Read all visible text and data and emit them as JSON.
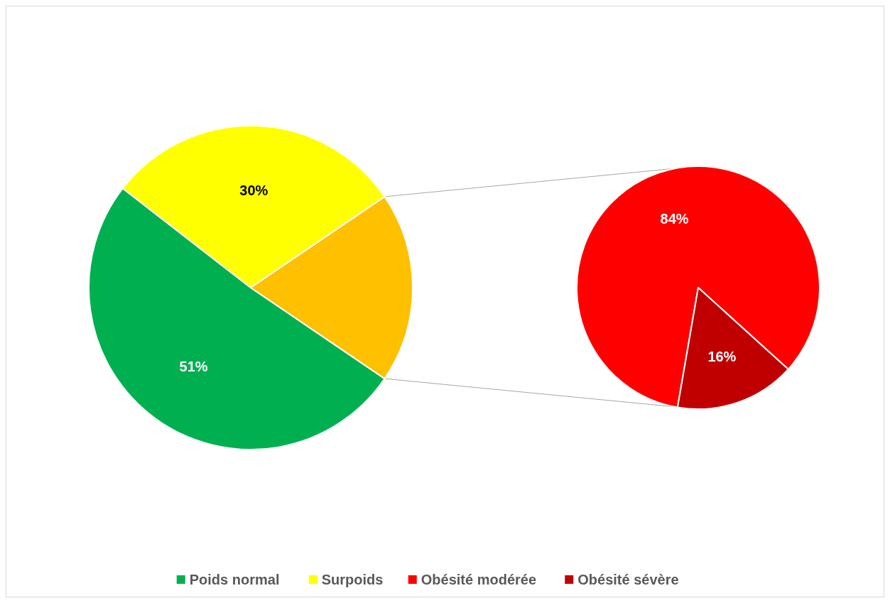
{
  "chart_data": [
    {
      "type": "pie",
      "categories": [
        "Poids normal",
        "Surpoids",
        null
      ],
      "values": [
        51,
        30,
        19
      ],
      "colors": [
        "#00b050",
        "#ffff00",
        "#ffc000"
      ],
      "value_labels": [
        "51%",
        "30%",
        null
      ],
      "legend": "bottom"
    },
    {
      "type": "pie",
      "categories": [
        "Obésité modérée",
        "Obésité sévère"
      ],
      "values": [
        84,
        16
      ],
      "colors": [
        "#ff0000",
        "#c00000"
      ],
      "value_labels": [
        "84%",
        "16%"
      ],
      "legend": "bottom"
    }
  ]
}
